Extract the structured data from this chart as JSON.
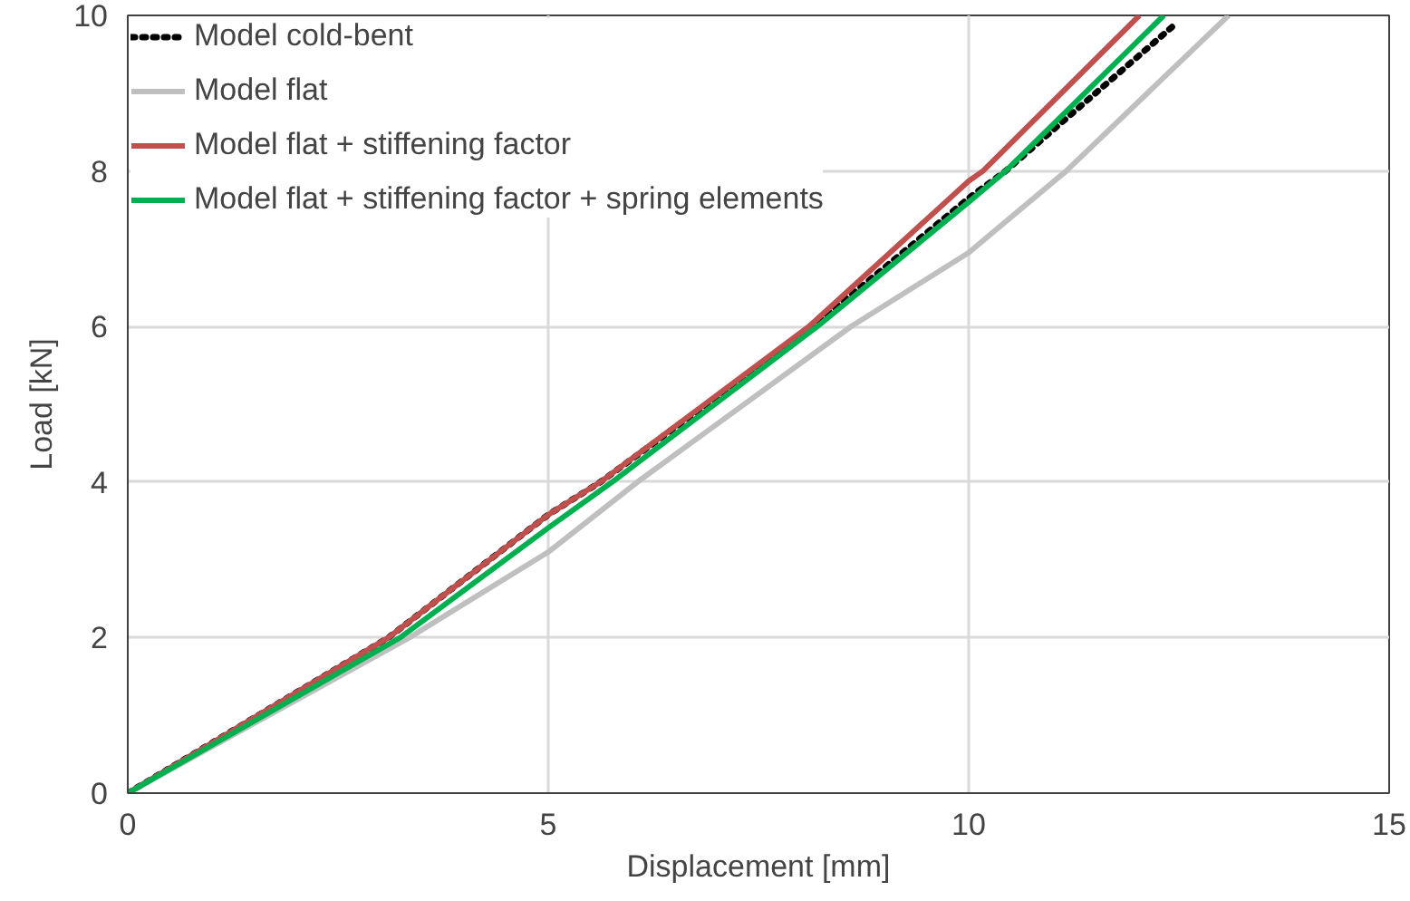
{
  "chart_data": {
    "type": "line",
    "xlabel": "Displacement [mm]",
    "ylabel": "Load [kN]",
    "xlim": [
      0,
      15
    ],
    "ylim": [
      0,
      10
    ],
    "xticks": [
      0,
      5,
      10,
      15
    ],
    "yticks": [
      0,
      2,
      4,
      6,
      8,
      10
    ],
    "grid": true,
    "legend": "top left",
    "marker": "none",
    "series": [
      {
        "name": "Model cold-bent",
        "color": "#000000",
        "line_style": "dotted",
        "x": [
          0,
          3.1,
          5,
          5.62,
          8.15,
          10,
          10.44,
          12.47
        ],
        "values": [
          0,
          2,
          3.58,
          4,
          6,
          7.65,
          8,
          9.9
        ]
      },
      {
        "name": "Model flat",
        "color": "#bfbfbf",
        "line_style": "solid",
        "x": [
          0,
          3.35,
          5,
          6.06,
          8.6,
          10,
          11.16,
          13.09
        ],
        "values": [
          0,
          2,
          3.1,
          4,
          6,
          6.95,
          8,
          10
        ]
      },
      {
        "name": "Model flat + stiffening factor",
        "color": "#c0504d",
        "line_style": "solid",
        "x": [
          0,
          3.1,
          5,
          5.62,
          8.1,
          10,
          10.17,
          12.03
        ],
        "values": [
          0,
          2,
          3.58,
          4,
          6,
          7.87,
          8,
          10
        ]
      },
      {
        "name": "Model flat + stiffening factor + spring elements",
        "color": "#00b050",
        "line_style": "solid",
        "x": [
          0,
          3.24,
          5,
          5.76,
          8.2,
          10,
          10.44,
          12.32
        ],
        "values": [
          0,
          2,
          3.41,
          4,
          6,
          7.6,
          8,
          10
        ]
      }
    ]
  }
}
